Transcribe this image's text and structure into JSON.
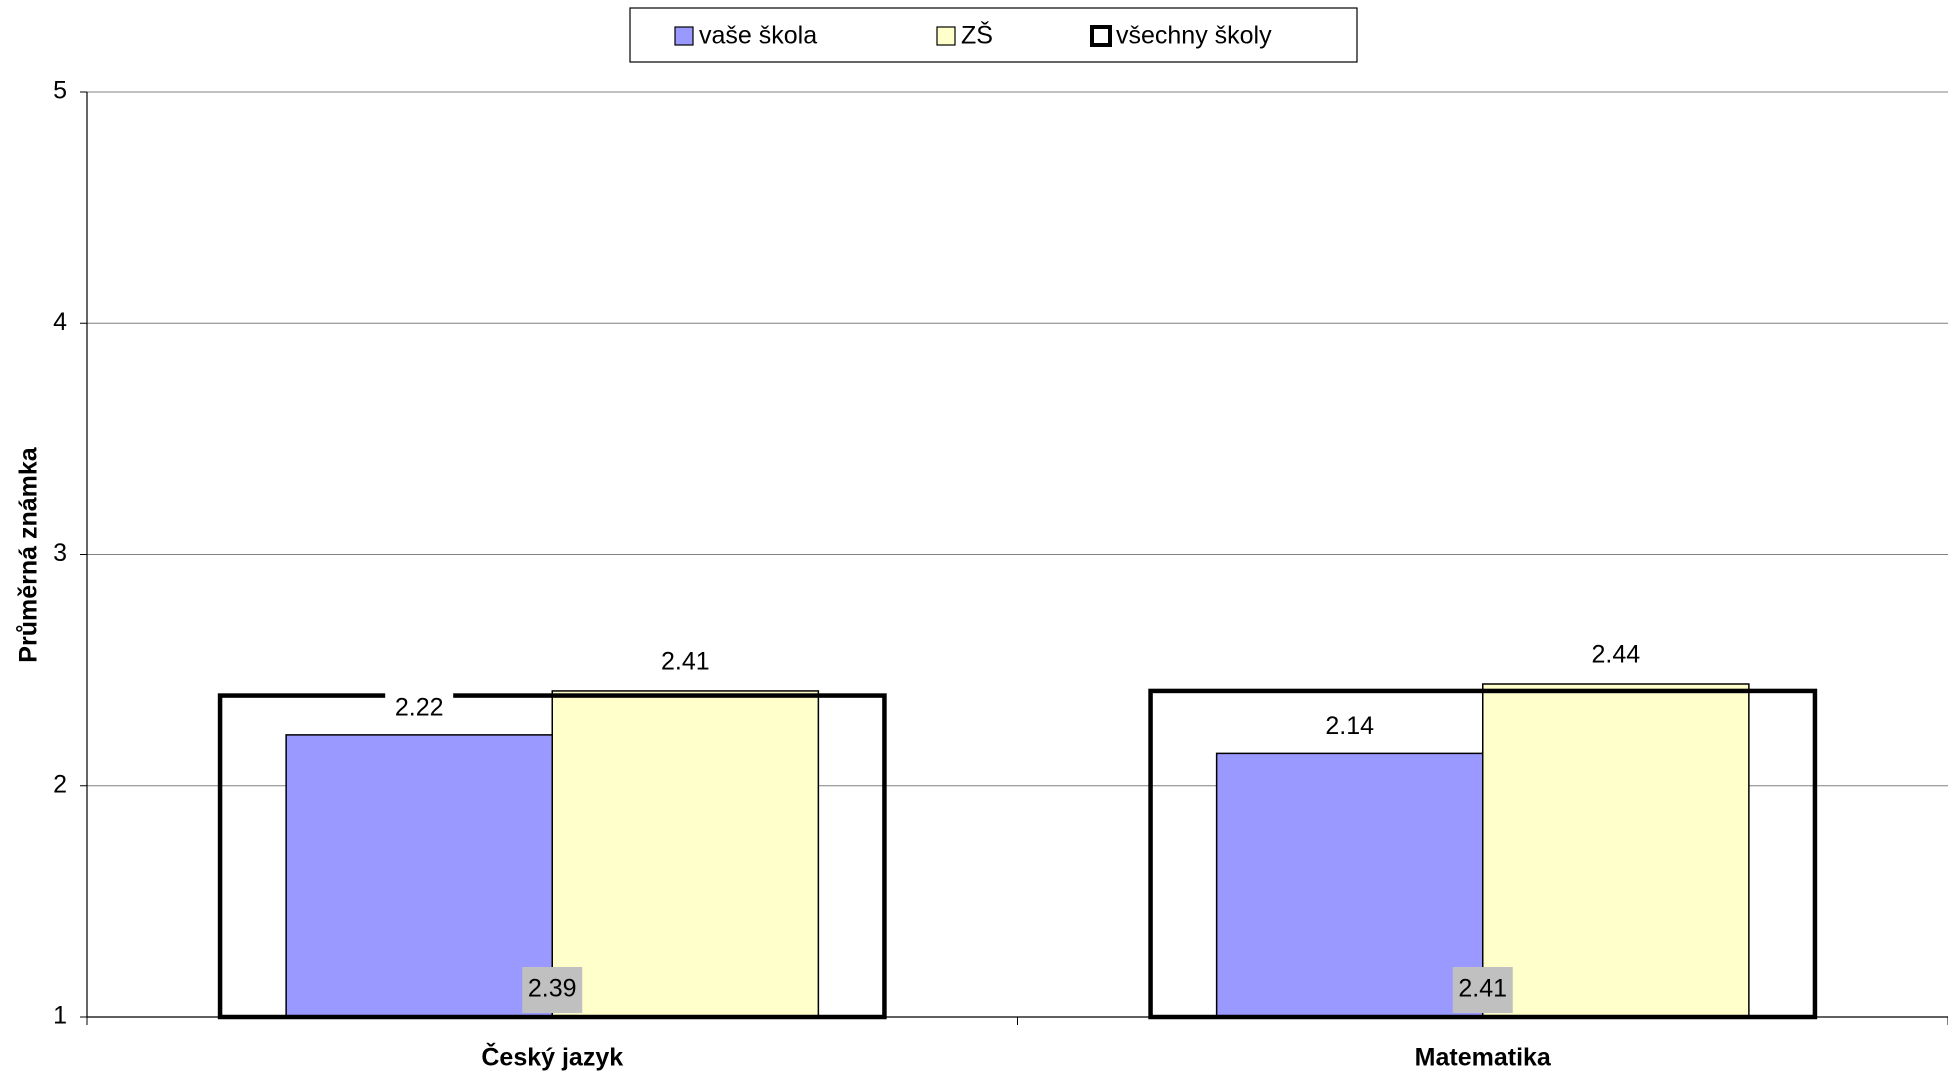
{
  "chart_data": {
    "type": "bar",
    "y_label": "Průměrná známka",
    "categories": [
      "Český jazyk",
      "Matematika"
    ],
    "series": [
      {
        "name": "vaše škola",
        "color": "#9999ff",
        "values": [
          2.22,
          2.14
        ]
      },
      {
        "name": "ZŠ",
        "color": "#ffffcc",
        "values": [
          2.41,
          2.44
        ]
      },
      {
        "name": "všechny školy",
        "color": "#000000",
        "values": [
          2.39,
          2.41
        ]
      }
    ],
    "ylim": [
      1,
      5
    ],
    "yticks": [
      1,
      2,
      3,
      4,
      5
    ],
    "grid": true
  }
}
